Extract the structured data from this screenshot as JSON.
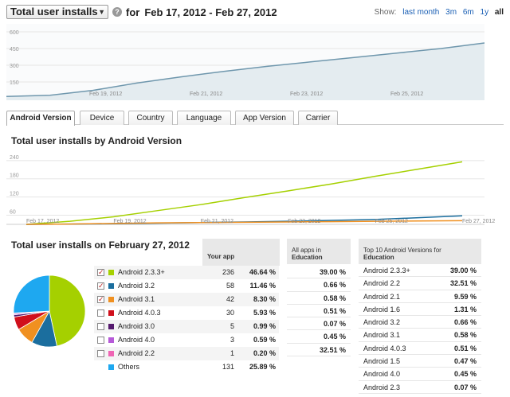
{
  "header": {
    "metric_label": "Total user installs",
    "help_label": "?",
    "for_label": "for",
    "date_range": "Feb 17, 2012 - Feb 27, 2012",
    "show_label": "Show:",
    "ranges": [
      "last month",
      "3m",
      "6m",
      "1y",
      "all"
    ],
    "active_range": "all"
  },
  "overview_chart": {
    "type": "area",
    "y_ticks": [
      "600",
      "450",
      "300",
      "150"
    ],
    "y_values": [
      600,
      450,
      300,
      150
    ],
    "x_ticks": [
      "Feb 19, 2012",
      "Feb 21, 2012",
      "Feb 23, 2012",
      "Feb 25, 2012"
    ],
    "line_color": "#6f97ad",
    "fill_color": "#e4ecf0"
  },
  "tabs": [
    "Android Version",
    "Device",
    "Country",
    "Language",
    "App Version",
    "Carrier"
  ],
  "active_tab": "Android Version",
  "by_version": {
    "title": "Total user installs by Android Version"
  },
  "chart_data": {
    "type": "line",
    "x": [
      "Feb 17, 2012",
      "Feb 18, 2012",
      "Feb 19, 2012",
      "Feb 20, 2012",
      "Feb 21, 2012",
      "Feb 22, 2012",
      "Feb 23, 2012",
      "Feb 24, 2012",
      "Feb 25, 2012",
      "Feb 26, 2012",
      "Feb 27, 2012"
    ],
    "x_tick_labels": [
      "Feb 17, 2012",
      "Feb 19, 2012",
      "Feb 21, 2012",
      "Feb 23, 2012",
      "Feb 25, 2012",
      "Feb 27, 2012"
    ],
    "y_ticks": [
      240,
      180,
      120,
      60
    ],
    "ylim": [
      30,
      250
    ],
    "grid": true,
    "series": [
      {
        "color": "#a5d000",
        "values": [
          30,
          40,
          55,
          75,
          95,
          118,
          140,
          163,
          188,
          212,
          236
        ]
      },
      {
        "color": "#1b6e9e",
        "values": [
          30,
          31,
          32,
          34,
          36,
          38,
          40,
          43,
          46,
          52,
          58
        ]
      },
      {
        "color": "#f09020",
        "values": [
          30,
          31,
          33,
          35,
          36,
          37,
          38,
          39,
          40,
          41,
          42
        ]
      }
    ]
  },
  "daily": {
    "title": "Total user installs on February 27, 2012",
    "your_app_header": "Your app",
    "all_apps_header": "All apps in",
    "all_apps_category": "Education",
    "top10_header": "Top 10 Android Versions for",
    "top10_category": "Education",
    "versions": [
      {
        "name": "Android 2.3.3+",
        "count": "236",
        "pct": "46.64 %",
        "checked": true,
        "color": "#a5d000",
        "share": 46.64
      },
      {
        "name": "Android 3.2",
        "count": "58",
        "pct": "11.46 %",
        "checked": true,
        "color": "#1b6e9e",
        "share": 11.46
      },
      {
        "name": "Android 3.1",
        "count": "42",
        "pct": "8.30 %",
        "checked": true,
        "color": "#f09020",
        "share": 8.3
      },
      {
        "name": "Android 4.0.3",
        "count": "30",
        "pct": "5.93 %",
        "checked": false,
        "color": "#d0101c",
        "share": 5.93
      },
      {
        "name": "Android 3.0",
        "count": "5",
        "pct": "0.99 %",
        "checked": false,
        "color": "#551a6e",
        "share": 0.99
      },
      {
        "name": "Android 4.0",
        "count": "3",
        "pct": "0.59 %",
        "checked": false,
        "color": "#b65ad8",
        "share": 0.59
      },
      {
        "name": "Android 2.2",
        "count": "1",
        "pct": "0.20 %",
        "checked": false,
        "color": "#ef64b4",
        "share": 0.2
      },
      {
        "name": "Others",
        "count": "131",
        "pct": "25.89 %",
        "checked": null,
        "color": "#1ea8f0",
        "share": 25.89
      }
    ],
    "all_apps_pcts": [
      "39.00 %",
      "0.66 %",
      "0.58 %",
      "0.51 %",
      "0.07 %",
      "0.45 %",
      "32.51 %"
    ],
    "top10": [
      {
        "name": "Android 2.3.3+",
        "pct": "39.00 %"
      },
      {
        "name": "Android 2.2",
        "pct": "32.51 %"
      },
      {
        "name": "Android 2.1",
        "pct": "9.59 %"
      },
      {
        "name": "Android 1.6",
        "pct": "1.31 %"
      },
      {
        "name": "Android 3.2",
        "pct": "0.66 %"
      },
      {
        "name": "Android 3.1",
        "pct": "0.58 %"
      },
      {
        "name": "Android 4.0.3",
        "pct": "0.51 %"
      },
      {
        "name": "Android 1.5",
        "pct": "0.47 %"
      },
      {
        "name": "Android 4.0",
        "pct": "0.45 %"
      },
      {
        "name": "Android 2.3",
        "pct": "0.07 %"
      }
    ]
  }
}
